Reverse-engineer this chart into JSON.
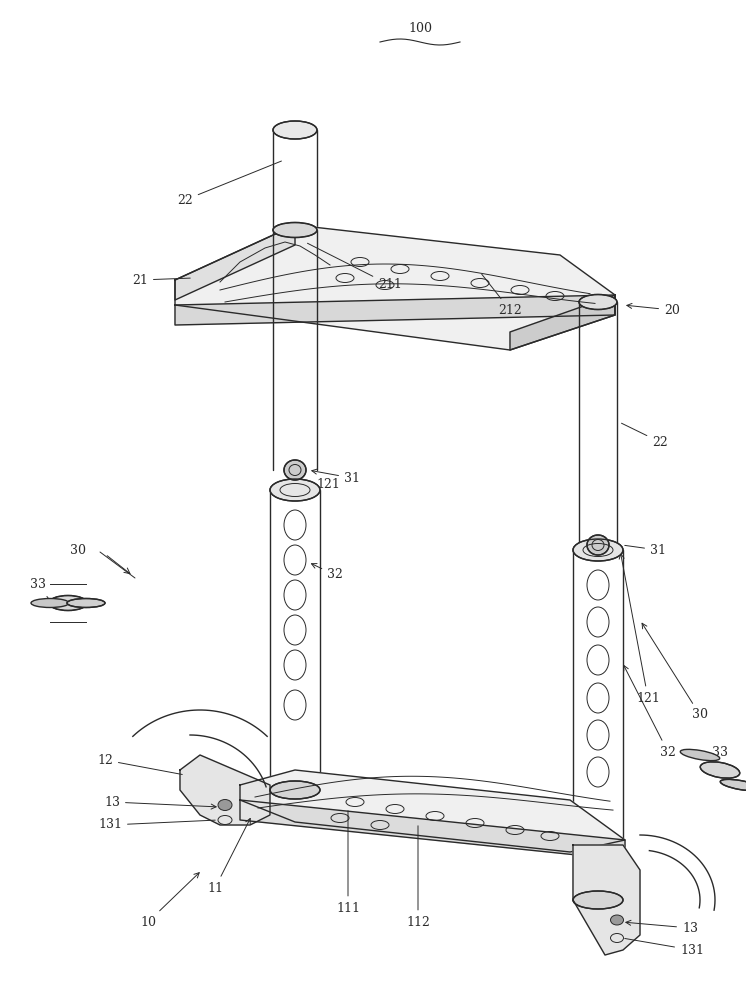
{
  "bg_color": "#ffffff",
  "line_color": "#2a2a2a",
  "thin_line": 0.7,
  "med_line": 1.0,
  "thick_line": 1.3,
  "fs": 9
}
